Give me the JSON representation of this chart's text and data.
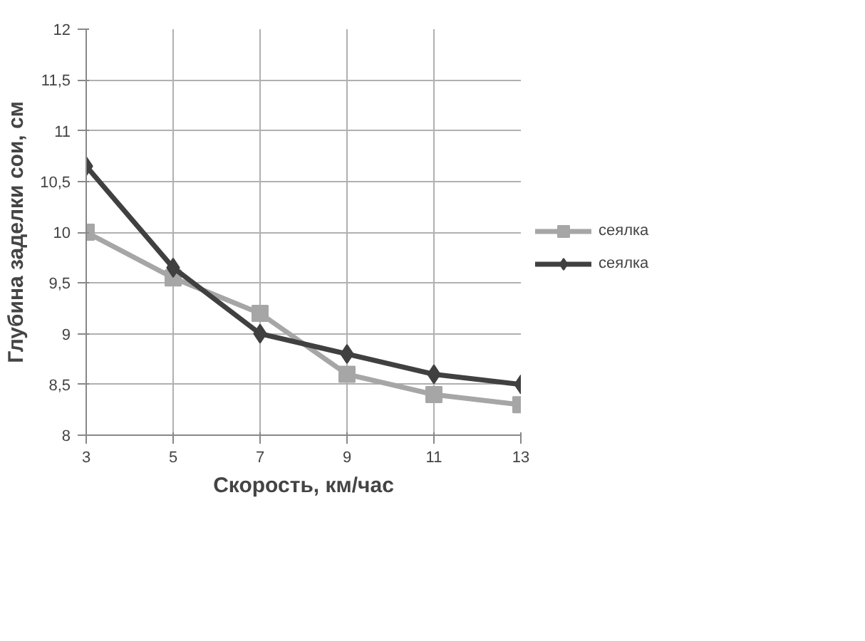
{
  "chart_data": {
    "type": "line",
    "xlabel": "Скорость, км/час",
    "ylabel": "Глубина заделки сои, см",
    "categories": [
      "3",
      "5",
      "7",
      "9",
      "11",
      "13"
    ],
    "series": [
      {
        "name": "сеялка",
        "color": "#a6a6a6",
        "marker": "square",
        "values": [
          10.0,
          9.55,
          9.2,
          8.6,
          8.4,
          8.3
        ]
      },
      {
        "name": "сеялка",
        "color": "#404040",
        "marker": "diamond",
        "values": [
          10.65,
          9.65,
          9.0,
          8.8,
          8.6,
          8.5
        ]
      }
    ],
    "ylim": [
      8,
      12
    ],
    "yticks": [
      8,
      {
        "value": 8.5,
        "label": "8,5"
      },
      9,
      {
        "value": 9.5,
        "label": "9,5"
      },
      10,
      {
        "value": 10.5,
        "label": "10,5"
      },
      11,
      {
        "value": 11.5,
        "label": "11,5"
      },
      12
    ],
    "grid": true,
    "legend": "right",
    "line_style": "solid"
  }
}
